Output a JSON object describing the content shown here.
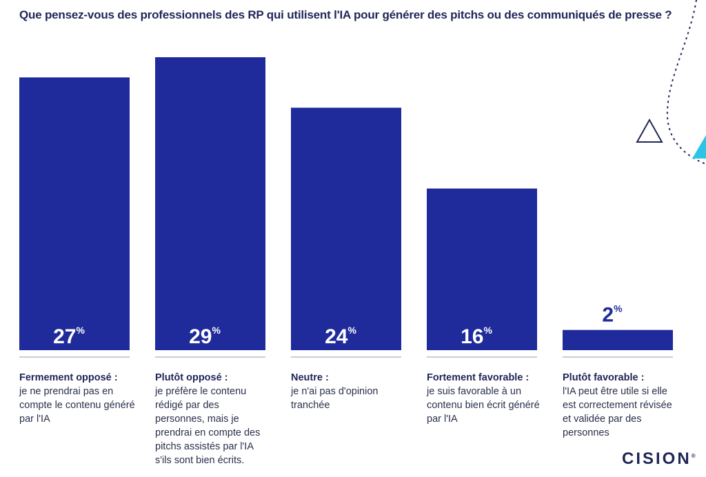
{
  "chart_data": {
    "type": "bar",
    "title": "Que pensez-vous des professionnels des RP qui utilisent l'IA pour générer des pitchs ou des communiqués de presse ?",
    "unit": "%",
    "ylim": [
      0,
      29
    ],
    "bar_color": "#1f2a9b",
    "categories": [
      {
        "name": "Fermement opposé :",
        "description": "je ne prendrai pas en compte le contenu généré par l'IA",
        "value": 27
      },
      {
        "name": "Plutôt opposé :",
        "description": "je préfère le contenu rédigé par des personnes, mais je prendrai en compte des pitchs assistés par l'IA s'ils sont bien écrits.",
        "value": 29
      },
      {
        "name": "Neutre :",
        "description": "je n'ai pas d'opinion tranchée",
        "value": 24
      },
      {
        "name": "Fortement favorable :",
        "description": "je suis favorable à un contenu bien écrit généré par l'IA",
        "value": 16
      },
      {
        "name": "Plutôt favorable :",
        "description": "l'IA peut être utile si elle est correctement révisée et validée par des personnes",
        "value": 2
      }
    ]
  },
  "brand": {
    "logo_text": "CISION",
    "logo_mark": "®",
    "accent_color": "#2ec4e6"
  }
}
